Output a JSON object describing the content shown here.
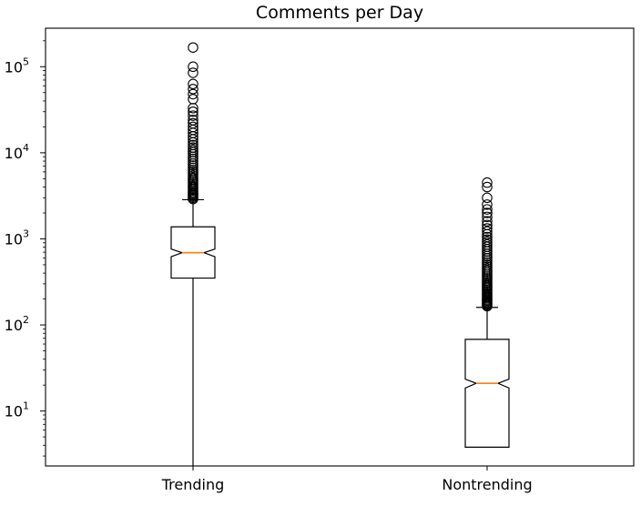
{
  "chart_data": {
    "type": "boxplot",
    "title": "Comments per Day",
    "xlabel": "",
    "ylabel": "",
    "yscale": "log",
    "ylim": [
      2.3,
      280000
    ],
    "y_ticks": [
      {
        "value": 10,
        "base": "10",
        "exp": "1"
      },
      {
        "value": 100,
        "base": "10",
        "exp": "2"
      },
      {
        "value": 1000,
        "base": "10",
        "exp": "3"
      },
      {
        "value": 10000,
        "base": "10",
        "exp": "4"
      },
      {
        "value": 100000,
        "base": "10",
        "exp": "5"
      }
    ],
    "grid": false,
    "notched": true,
    "categories": [
      "Trending",
      "Nontrending"
    ],
    "boxes": [
      {
        "category": "Trending",
        "whisker_low": 2.3,
        "q1": 350,
        "median": 690,
        "q3": 1380,
        "whisker_high": 2850,
        "notch_low": 620,
        "notch_high": 760,
        "outliers": [
          2900,
          3000,
          3100,
          3200,
          3300,
          3400,
          3500,
          3650,
          3800,
          3950,
          4100,
          4300,
          4500,
          4700,
          4900,
          5100,
          5400,
          5700,
          6000,
          6300,
          6700,
          7100,
          7500,
          8000,
          8500,
          9000,
          9600,
          10200,
          10800,
          11500,
          12300,
          13200,
          14300,
          15500,
          17000,
          18500,
          20000,
          22000,
          24000,
          27000,
          30000,
          33000,
          42000,
          48000,
          55000,
          63000,
          85000,
          100000,
          167000
        ]
      },
      {
        "category": "Nontrending",
        "whisker_low": 3.8,
        "q1": 3.8,
        "median": 21,
        "q3": 68,
        "whisker_high": 160,
        "notch_low": 18.5,
        "notch_high": 23.5,
        "outliers": [
          165,
          170,
          175,
          180,
          186,
          192,
          198,
          205,
          212,
          220,
          228,
          236,
          245,
          255,
          265,
          275,
          286,
          298,
          310,
          325,
          340,
          355,
          372,
          390,
          410,
          430,
          452,
          475,
          500,
          530,
          560,
          595,
          630,
          670,
          715,
          760,
          810,
          860,
          920,
          980,
          1050,
          1130,
          1220,
          1320,
          1450,
          1600,
          1800,
          2000,
          2200,
          2500,
          3000,
          4000,
          4500
        ]
      }
    ],
    "colors": {
      "box": "#000000",
      "median": "#ff7f0e",
      "outlier": "#000000",
      "background": "#ffffff"
    }
  }
}
